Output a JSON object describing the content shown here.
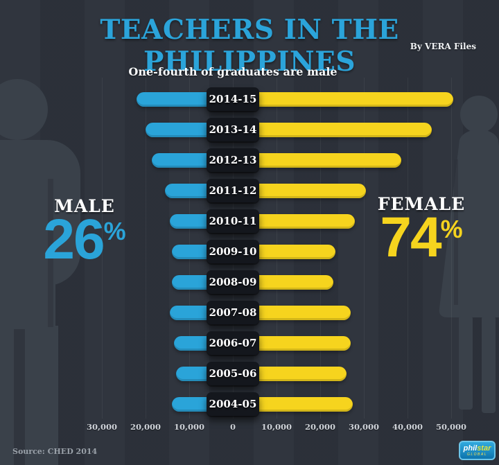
{
  "header": {
    "title": "TEACHERS IN THE PHILIPPINES",
    "byline": "By VERA Files",
    "subtitle": "One-fourth of graduates are male"
  },
  "summary": {
    "male": {
      "label": "MALE",
      "value": "26",
      "unit": "%",
      "color": "#2aa4d9"
    },
    "female": {
      "label": "FEMALE",
      "value": "74",
      "unit": "%",
      "color": "#f6d41e"
    }
  },
  "chart_data": {
    "type": "bar",
    "subtype": "diverging-horizontal",
    "title": "One-fourth of graduates are male",
    "categories": [
      "2014-15",
      "2013-14",
      "2012-13",
      "2011-12",
      "2010-11",
      "2009-10",
      "2008-09",
      "2007-08",
      "2006-07",
      "2005-06",
      "2004-05"
    ],
    "series": [
      {
        "name": "Male",
        "side": "left",
        "color": "#2aa4d9",
        "values": [
          22000,
          20000,
          18500,
          15500,
          14500,
          14000,
          14000,
          14500,
          13500,
          13000,
          14000
        ]
      },
      {
        "name": "Female",
        "side": "right",
        "color": "#f6d41e",
        "values": [
          50500,
          45500,
          38500,
          30500,
          28000,
          23500,
          23000,
          27000,
          27000,
          26000,
          27500
        ]
      }
    ],
    "x_ticks": [
      {
        "value": -30000,
        "label": "30,000"
      },
      {
        "value": -20000,
        "label": "20,000"
      },
      {
        "value": -10000,
        "label": "10,000"
      },
      {
        "value": 0,
        "label": "0"
      },
      {
        "value": 10000,
        "label": "10,000"
      },
      {
        "value": 20000,
        "label": "20,000"
      },
      {
        "value": 30000,
        "label": "30,000"
      },
      {
        "value": 40000,
        "label": "40,000"
      },
      {
        "value": 50000,
        "label": "50,000"
      }
    ],
    "xlim": [
      -33000,
      56000
    ],
    "grid": true,
    "legend": {
      "male_pct": 26,
      "female_pct": 74
    }
  },
  "footer": {
    "source": "Source: CHED 2014",
    "logo": {
      "phil": "phil",
      "star": "star",
      "global": "GLOBAL"
    }
  }
}
